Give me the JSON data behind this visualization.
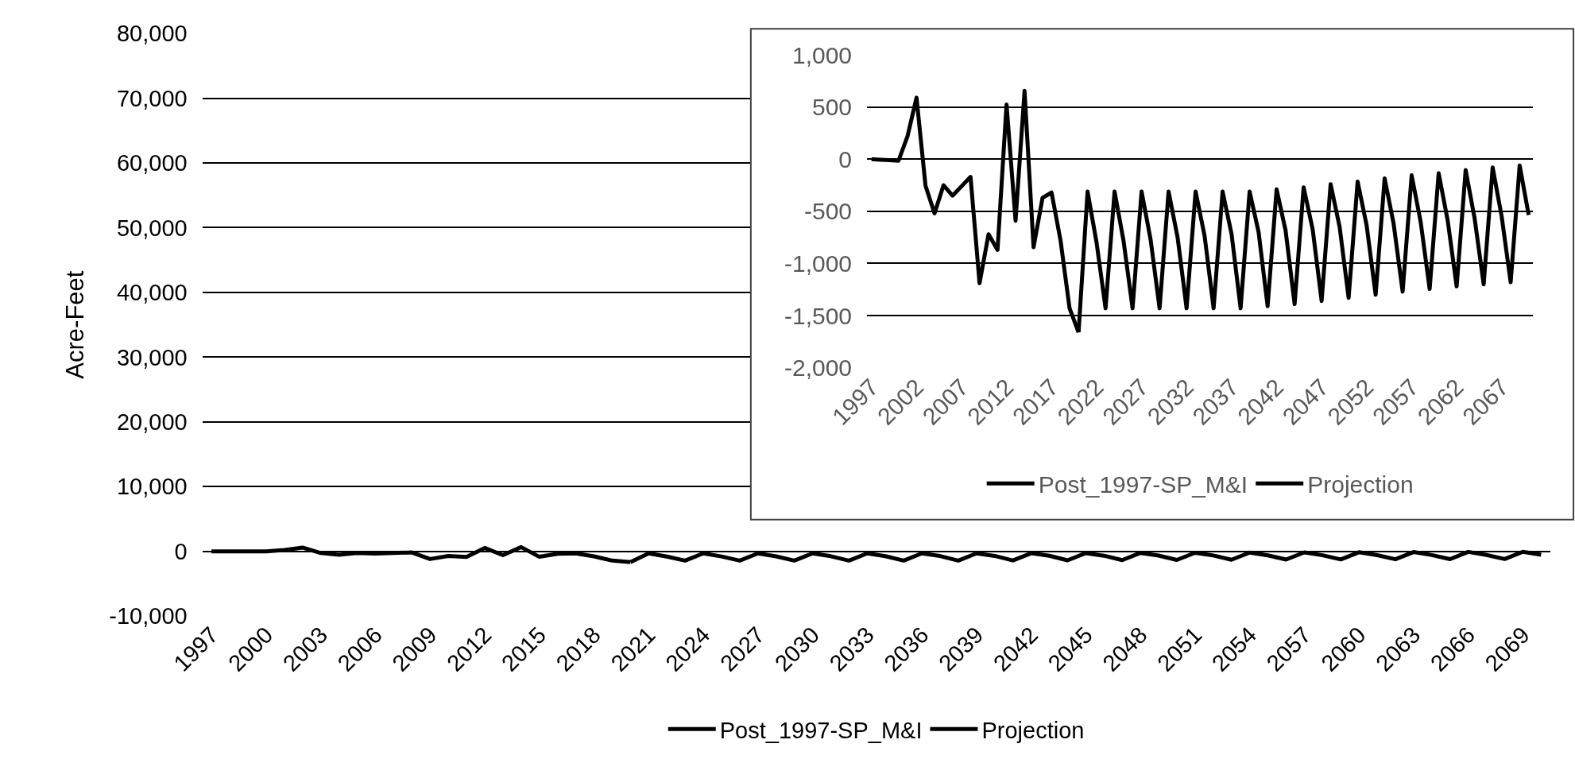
{
  "chart_data": [
    {
      "type": "line",
      "ylabel": "Acre-Feet",
      "grid": "y",
      "legend": "bottom",
      "line_style": "solid",
      "xlim": [
        1996.5,
        2070.5
      ],
      "xticks": [
        1997,
        2000,
        2003,
        2006,
        2009,
        2012,
        2015,
        2018,
        2021,
        2024,
        2027,
        2030,
        2033,
        2036,
        2039,
        2042,
        2045,
        2048,
        2051,
        2054,
        2057,
        2060,
        2063,
        2066,
        2069
      ],
      "ylim": [
        -10000,
        80000
      ],
      "yticks": [
        {
          "value": -10000,
          "label": "-10,000"
        },
        0,
        {
          "value": 10000,
          "label": "10,000"
        },
        {
          "value": 20000,
          "label": "20,000"
        },
        {
          "value": 30000,
          "label": "30,000"
        },
        {
          "value": 40000,
          "label": "40,000"
        },
        {
          "value": 50000,
          "label": "50,000"
        },
        {
          "value": 60000,
          "label": "60,000"
        },
        {
          "value": 70000,
          "label": "70,000"
        },
        {
          "value": 80000,
          "label": "80,000"
        }
      ],
      "series": [
        {
          "name": "Post_1997-SP_M&I",
          "color": "#000000",
          "x": [
            1997,
            1998,
            1999,
            2000,
            2001,
            2002,
            2003,
            2004,
            2005,
            2006,
            2007,
            2008,
            2009,
            2010,
            2011,
            2012,
            2013,
            2014,
            2015,
            2016,
            2017,
            2018,
            2019,
            2020
          ],
          "values": [
            0,
            -5,
            -10,
            -15,
            220,
            590,
            -255,
            -520,
            -250,
            -350,
            -260,
            -170,
            -1190,
            -720,
            -870,
            525,
            -590,
            655,
            -845,
            -370,
            -320,
            -780,
            -1430,
            -1660
          ]
        },
        {
          "name": "Projection",
          "color": "#000000",
          "x": [
            2020,
            2021,
            2022,
            2023,
            2024,
            2025,
            2026,
            2027,
            2028,
            2029,
            2030,
            2031,
            2032,
            2033,
            2034,
            2035,
            2036,
            2037,
            2038,
            2039,
            2040,
            2041,
            2042,
            2043,
            2044,
            2045,
            2046,
            2047,
            2048,
            2049,
            2050,
            2051,
            2052,
            2053,
            2054,
            2055,
            2056,
            2057,
            2058,
            2059,
            2060,
            2061,
            2062,
            2063,
            2064,
            2065,
            2066,
            2067,
            2068,
            2069,
            2070
          ],
          "values": [
            -1660,
            -310,
            -800,
            -1430,
            -310,
            -785,
            -1430,
            -310,
            -770,
            -1430,
            -310,
            -750,
            -1430,
            -310,
            -735,
            -1430,
            -310,
            -720,
            -1430,
            -310,
            -700,
            -1410,
            -290,
            -685,
            -1390,
            -270,
            -670,
            -1360,
            -240,
            -650,
            -1330,
            -215,
            -635,
            -1300,
            -185,
            -620,
            -1270,
            -155,
            -600,
            -1245,
            -135,
            -585,
            -1220,
            -105,
            -570,
            -1200,
            -80,
            -550,
            -1180,
            -60,
            -535
          ]
        }
      ]
    },
    {
      "type": "line",
      "grid": "y",
      "legend": "bottom",
      "line_style": "solid",
      "xlim": [
        1996.5,
        2070.5
      ],
      "xticks": [
        1997,
        2002,
        2007,
        2012,
        2017,
        2022,
        2027,
        2032,
        2037,
        2042,
        2047,
        2052,
        2057,
        2062,
        2067
      ],
      "ylim": [
        -2000,
        1000
      ],
      "yticks": [
        {
          "value": -2000,
          "label": "-2,000"
        },
        {
          "value": -1500,
          "label": "-1,500"
        },
        {
          "value": -1000,
          "label": "-1,000"
        },
        -500,
        0,
        500,
        {
          "value": 1000,
          "label": "1,000"
        }
      ],
      "series": [
        {
          "name": "Post_1997-SP_M&I",
          "color": "#000000",
          "x": [
            1997,
            1998,
            1999,
            2000,
            2001,
            2002,
            2003,
            2004,
            2005,
            2006,
            2007,
            2008,
            2009,
            2010,
            2011,
            2012,
            2013,
            2014,
            2015,
            2016,
            2017,
            2018,
            2019,
            2020
          ],
          "values": [
            0,
            -5,
            -10,
            -15,
            220,
            590,
            -255,
            -520,
            -250,
            -350,
            -260,
            -170,
            -1190,
            -720,
            -870,
            525,
            -590,
            655,
            -845,
            -370,
            -320,
            -780,
            -1430,
            -1660
          ]
        },
        {
          "name": "Projection",
          "color": "#000000",
          "x": [
            2020,
            2021,
            2022,
            2023,
            2024,
            2025,
            2026,
            2027,
            2028,
            2029,
            2030,
            2031,
            2032,
            2033,
            2034,
            2035,
            2036,
            2037,
            2038,
            2039,
            2040,
            2041,
            2042,
            2043,
            2044,
            2045,
            2046,
            2047,
            2048,
            2049,
            2050,
            2051,
            2052,
            2053,
            2054,
            2055,
            2056,
            2057,
            2058,
            2059,
            2060,
            2061,
            2062,
            2063,
            2064,
            2065,
            2066,
            2067,
            2068,
            2069,
            2070
          ],
          "values": [
            -1660,
            -310,
            -800,
            -1430,
            -310,
            -785,
            -1430,
            -310,
            -770,
            -1430,
            -310,
            -750,
            -1430,
            -310,
            -735,
            -1430,
            -310,
            -720,
            -1430,
            -310,
            -700,
            -1410,
            -290,
            -685,
            -1390,
            -270,
            -670,
            -1360,
            -240,
            -650,
            -1330,
            -215,
            -635,
            -1300,
            -185,
            -620,
            -1270,
            -155,
            -600,
            -1245,
            -135,
            -585,
            -1220,
            -105,
            -570,
            -1200,
            -80,
            -550,
            -1180,
            -60,
            -535
          ]
        }
      ]
    }
  ]
}
